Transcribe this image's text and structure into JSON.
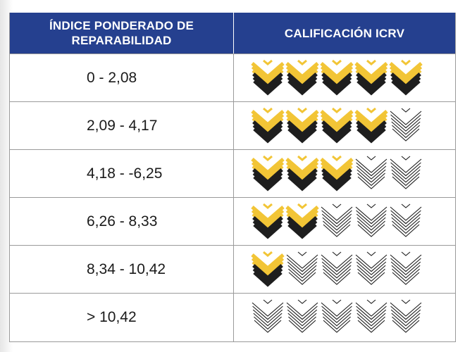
{
  "header": {
    "col1_title": "ÍNDICE PONDERADO DE REPARABILIDAD",
    "col2_title": "CALIFICACIÓN ICRV"
  },
  "colors": {
    "header_bg": "#25408f",
    "badge_filled_top": "#f2c536",
    "badge_filled_bottom": "#1e1e1e",
    "badge_empty_stroke": "#1e1e1e"
  },
  "badge_icon": "chevron-stack-icon",
  "max_rating": 5,
  "rows": [
    {
      "range": "0 - 2,08",
      "rating": 5
    },
    {
      "range": "2,09 - 4,17",
      "rating": 4
    },
    {
      "range": "4,18 - -6,25",
      "rating": 3
    },
    {
      "range": "6,26 - 8,33",
      "rating": 2
    },
    {
      "range": "8,34 - 10,42",
      "rating": 1
    },
    {
      "range": "> 10,42",
      "rating": 0
    }
  ]
}
